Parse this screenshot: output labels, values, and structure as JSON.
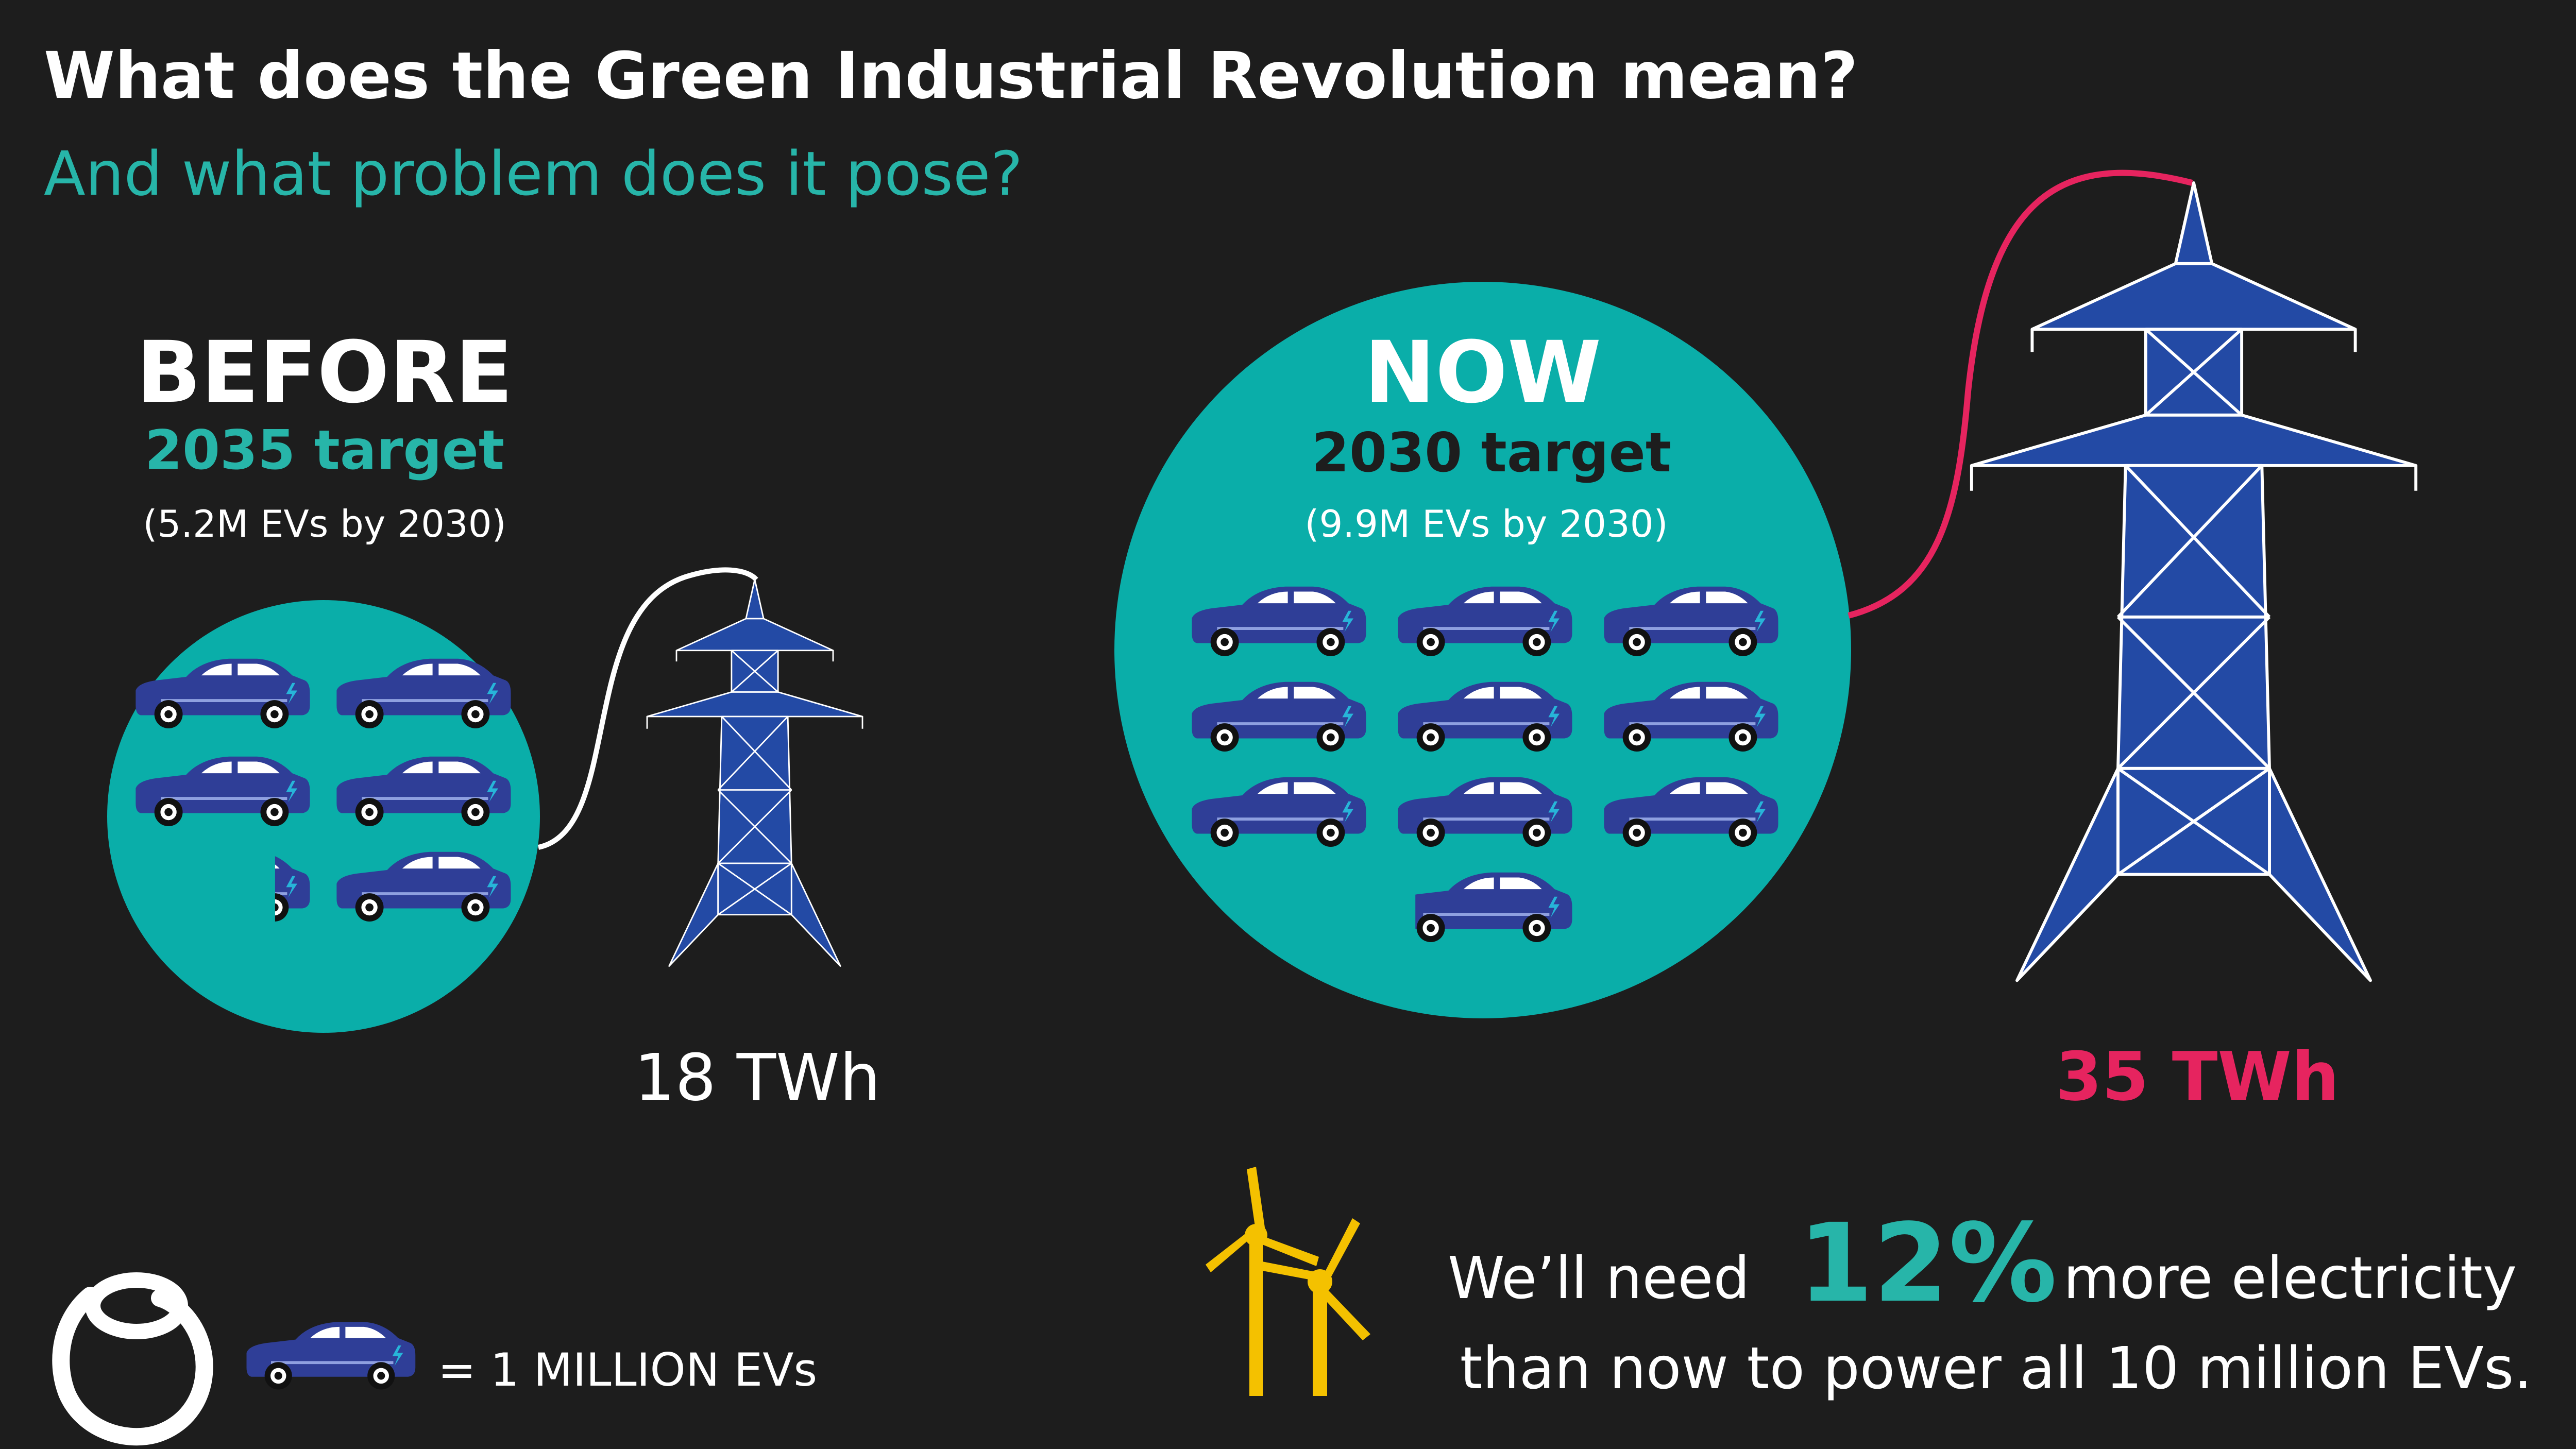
{
  "header": {
    "title": "What does the Green Industrial Revolution mean?",
    "subtitle": "And what problem does it pose?"
  },
  "before": {
    "heading": "BEFORE",
    "target": "2035 target",
    "note": "(5.2M EVs by 2030)",
    "ev_millions": 5.2,
    "energy": "18 TWh"
  },
  "now": {
    "heading": "NOW",
    "target": "2030 target",
    "note": "(9.9M EVs by 2030)",
    "ev_millions": 9.9,
    "energy": "35 TWh"
  },
  "footer": {
    "need_prefix": "We’ll need",
    "need_percent": "12%",
    "need_suffix": "more electricity",
    "need_line2": "than now to power all 10 million EVs.",
    "legend": "= 1 MILLION EVs"
  },
  "icons": {
    "car": "electric-car-icon",
    "pylon": "electricity-pylon-icon",
    "turbine": "wind-turbine-icon",
    "logo": "brand-logo-icon"
  },
  "colors": {
    "background": "#1d1d1d",
    "teal": "#0aaea9",
    "teal_text": "#27b5a9",
    "pink": "#e6245f",
    "car_blue": "#2f3e97",
    "pylon_blue": "#234aa5",
    "turbine_yellow": "#f4c100"
  }
}
